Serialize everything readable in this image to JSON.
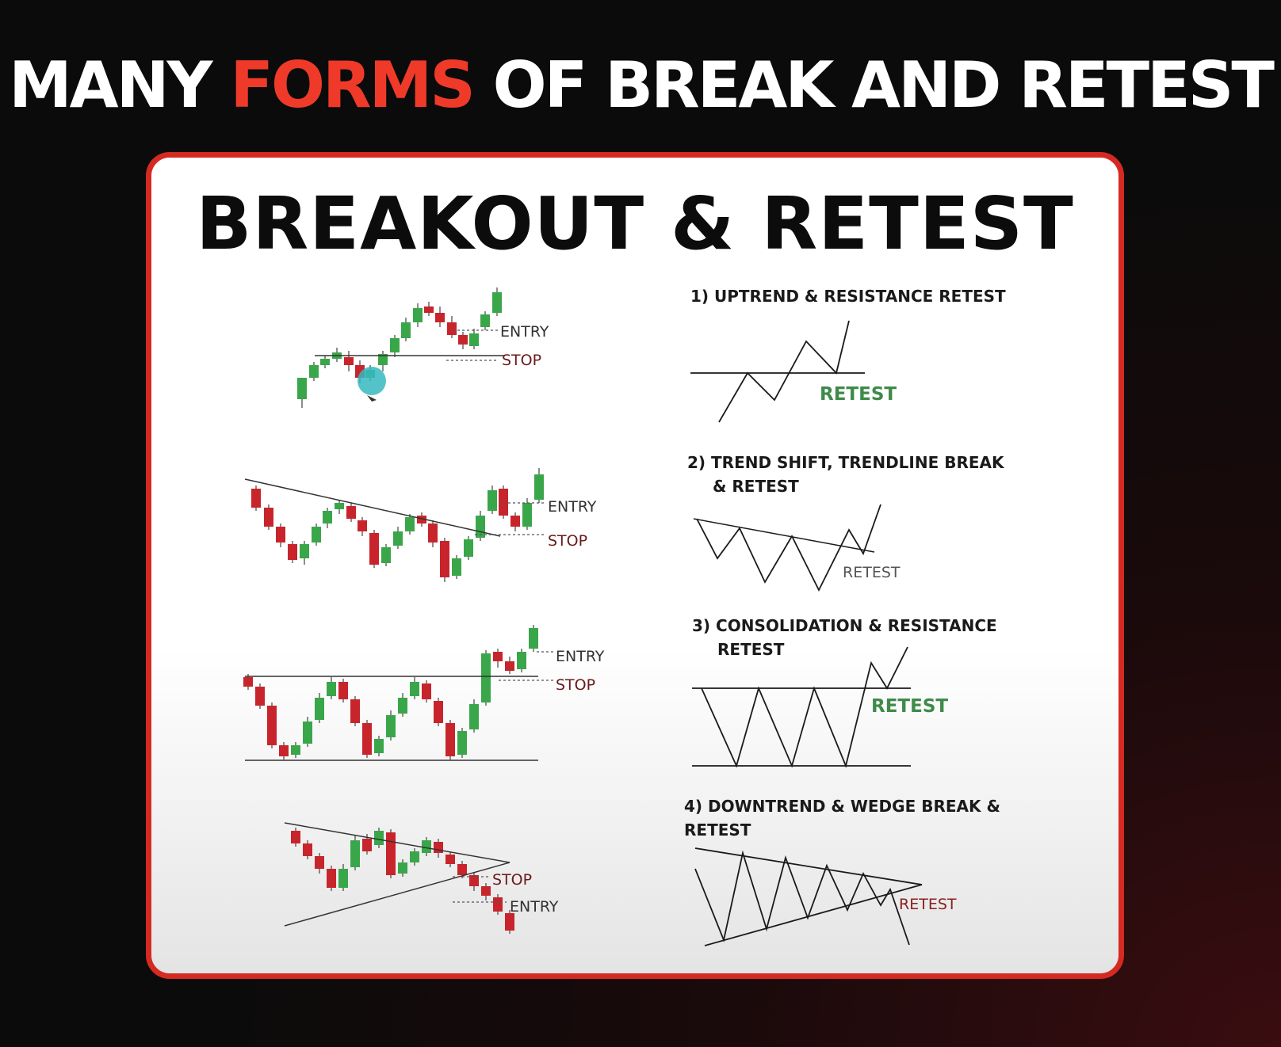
{
  "headline": {
    "part1": "MANY ",
    "accent": "FORMS",
    "part2": " OF BREAK AND RETEST",
    "text_color": "#ffffff",
    "accent_color": "#ef3a2a"
  },
  "card": {
    "title": "BREAKOUT & RETEST",
    "border_color": "#d52a22"
  },
  "colors": {
    "bull": "#3aa64a",
    "bear": "#c8242c",
    "retest_label": "#3f8a4a"
  },
  "patterns": [
    {
      "caption_line1": "1) UPTREND & RESISTANCE RETEST",
      "caption_line2": "",
      "entry_label": "ENTRY",
      "stop_label": "STOP",
      "retest_label": "RETEST",
      "cursor_icon": "pointer-cursor-icon"
    },
    {
      "caption_line1": "2) TREND SHIFT, TRENDLINE BREAK",
      "caption_line2": "& RETEST",
      "entry_label": "ENTRY",
      "stop_label": "STOP",
      "retest_label": "RETEST"
    },
    {
      "caption_line1": "3) CONSOLIDATION & RESISTANCE",
      "caption_line2": "RETEST",
      "entry_label": "ENTRY",
      "stop_label": "STOP",
      "retest_label": "RETEST"
    },
    {
      "caption_line1": "4) DOWNTREND & WEDGE BREAK &",
      "caption_line2": "RETEST",
      "entry_label": "ENTRY",
      "stop_label": "STOP",
      "retest_label": "RETEST"
    }
  ]
}
